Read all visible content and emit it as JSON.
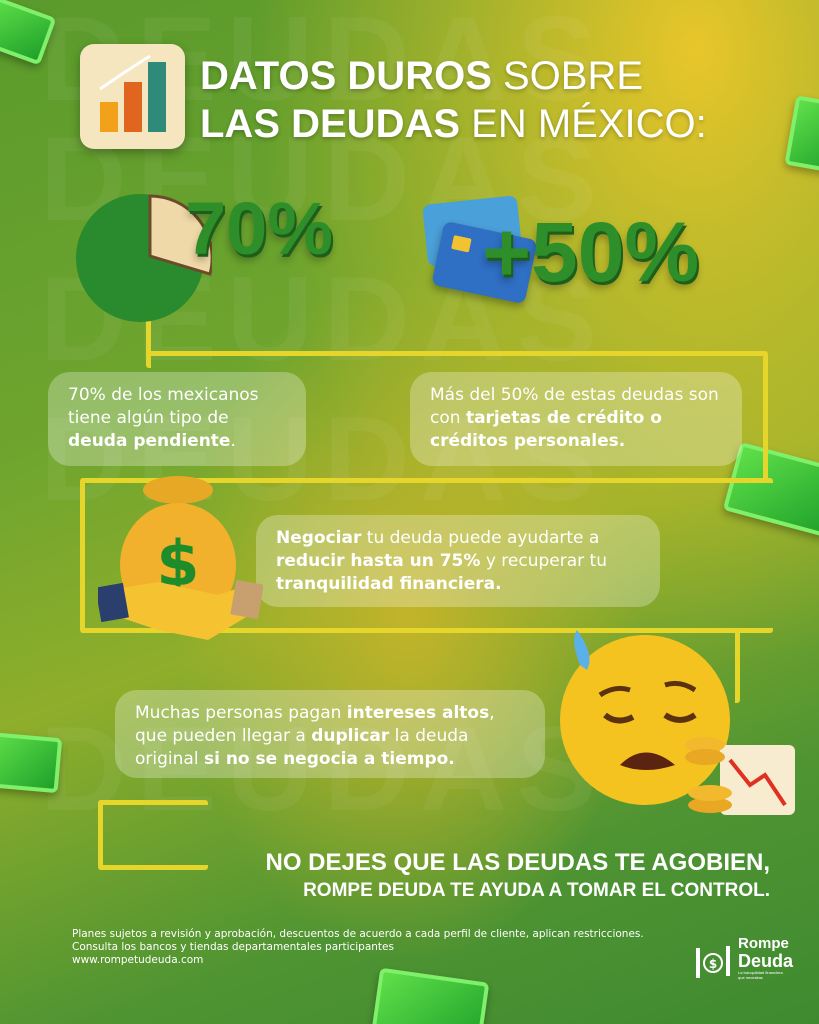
{
  "title": {
    "line1_bold": "DATOS DUROS",
    "line1_light": "SOBRE",
    "line2_bold": "LAS DEUDAS",
    "line2_light": "EN MÉXICO:"
  },
  "watermark": "DEUDAS",
  "stats": [
    {
      "value": "70%",
      "icon": "pie-chart-icon"
    },
    {
      "value": "+50%",
      "icon": "credit-cards-icon"
    }
  ],
  "facts": [
    {
      "parts": [
        {
          "t": "70% de los mexicanos tiene algún tipo de ",
          "b": false
        },
        {
          "t": "deuda pendiente",
          "b": true
        },
        {
          "t": ".",
          "b": false
        }
      ]
    },
    {
      "parts": [
        {
          "t": "Más del 50% de estas deudas son con ",
          "b": false
        },
        {
          "t": "tarjetas de crédito o créditos personales.",
          "b": true
        }
      ]
    },
    {
      "parts": [
        {
          "t": "Negociar",
          "b": true
        },
        {
          "t": " tu deuda puede ayudarte a ",
          "b": false
        },
        {
          "t": "reducir hasta un 75%",
          "b": true
        },
        {
          "t": " y recuperar tu ",
          "b": false
        },
        {
          "t": "tranquilidad financiera.",
          "b": true
        }
      ]
    },
    {
      "parts": [
        {
          "t": "Muchas personas pagan ",
          "b": false
        },
        {
          "t": "intereses altos",
          "b": true
        },
        {
          "t": ", que pueden llegar a ",
          "b": false
        },
        {
          "t": "duplicar",
          "b": true
        },
        {
          "t": " la deuda original ",
          "b": false
        },
        {
          "t": "si no se negocia a tiempo.",
          "b": true
        }
      ]
    }
  ],
  "slogan": {
    "line1": "NO DEJES QUE LAS DEUDAS TE AGOBIEN,",
    "line2": "ROMPE DEUDA TE AYUDA A TOMAR EL CONTROL."
  },
  "footer": {
    "line1": "Planes sujetos a revisión y aprobación, descuentos de acuerdo a cada perfil de cliente, aplican restricciones.",
    "line2": "Consulta los bancos y tiendas departamentales participantes",
    "url": "www.rompetudeuda.com"
  },
  "logo": {
    "name1": "Rompe",
    "name2": "Deuda",
    "tagline": "La tranquilidad financiera que necesitas"
  },
  "colors": {
    "accent_green": "#2e8e2a",
    "line_yellow": "#e6d52a"
  }
}
